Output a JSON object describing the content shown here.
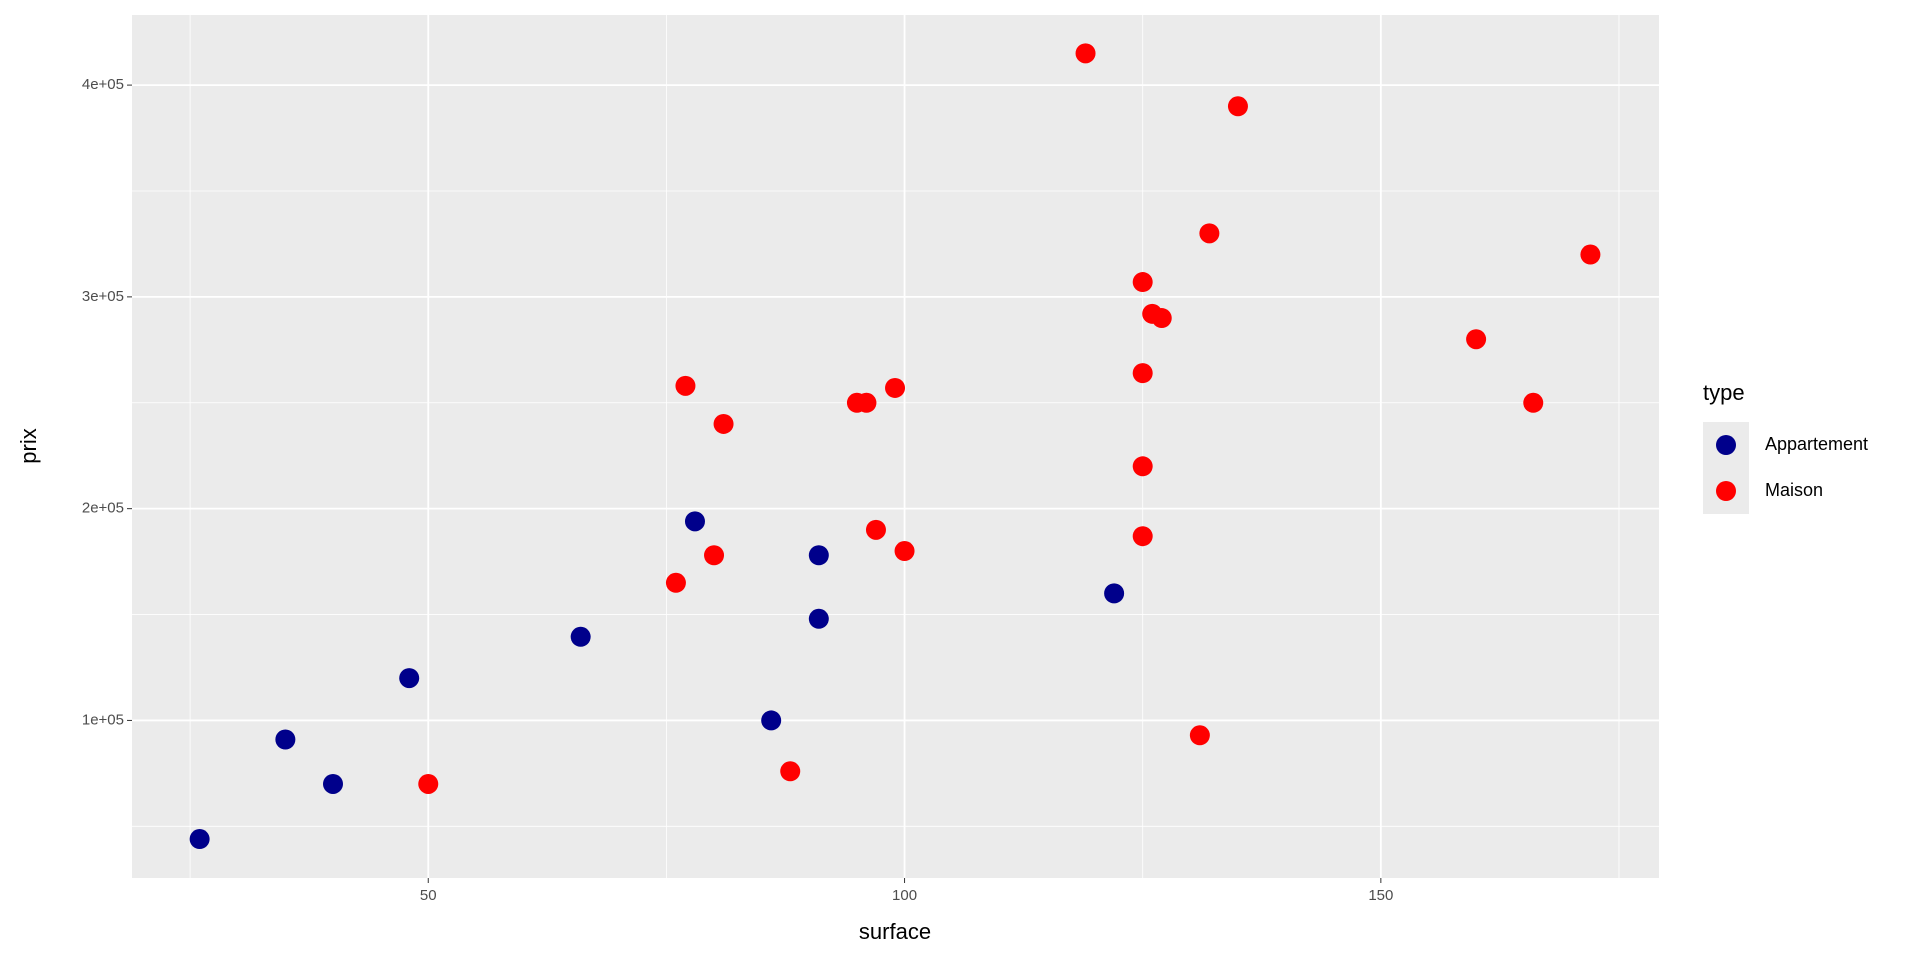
{
  "chart_data": {
    "type": "scatter",
    "x_label": "surface",
    "y_label": "prix",
    "xlim": [
      18.9,
      179.2
    ],
    "ylim": [
      25600,
      433100
    ],
    "xticks": [
      50,
      100,
      150
    ],
    "yticks": [
      {
        "value": 100000,
        "label": "1e+05"
      },
      {
        "value": 200000,
        "label": "2e+05"
      },
      {
        "value": 300000,
        "label": "3e+05"
      },
      {
        "value": 400000,
        "label": "4e+05"
      }
    ],
    "grid": true,
    "legend_title": "type",
    "series": [
      {
        "name": "Appartement",
        "color": "#00008b",
        "x": [
          26,
          35,
          40,
          48,
          66,
          78,
          86,
          91,
          91,
          122
        ],
        "values": [
          44000,
          91000,
          70000,
          120000,
          139500,
          194000,
          100000,
          178000,
          148000,
          160000
        ]
      },
      {
        "name": "Maison",
        "color": "#ff0000",
        "x": [
          50,
          76,
          77,
          80,
          81,
          88,
          95,
          96,
          97,
          99,
          100,
          119,
          125,
          125,
          125,
          125,
          126,
          127,
          131,
          132,
          135,
          160,
          166,
          172
        ],
        "values": [
          70000,
          165000,
          258000,
          178000,
          240000,
          76000,
          250000,
          250000,
          190000,
          257000,
          180000,
          415000,
          307000,
          264000,
          220000,
          187000,
          292000,
          290000,
          93000,
          330000,
          390000,
          280000,
          250000,
          320000
        ]
      }
    ]
  }
}
